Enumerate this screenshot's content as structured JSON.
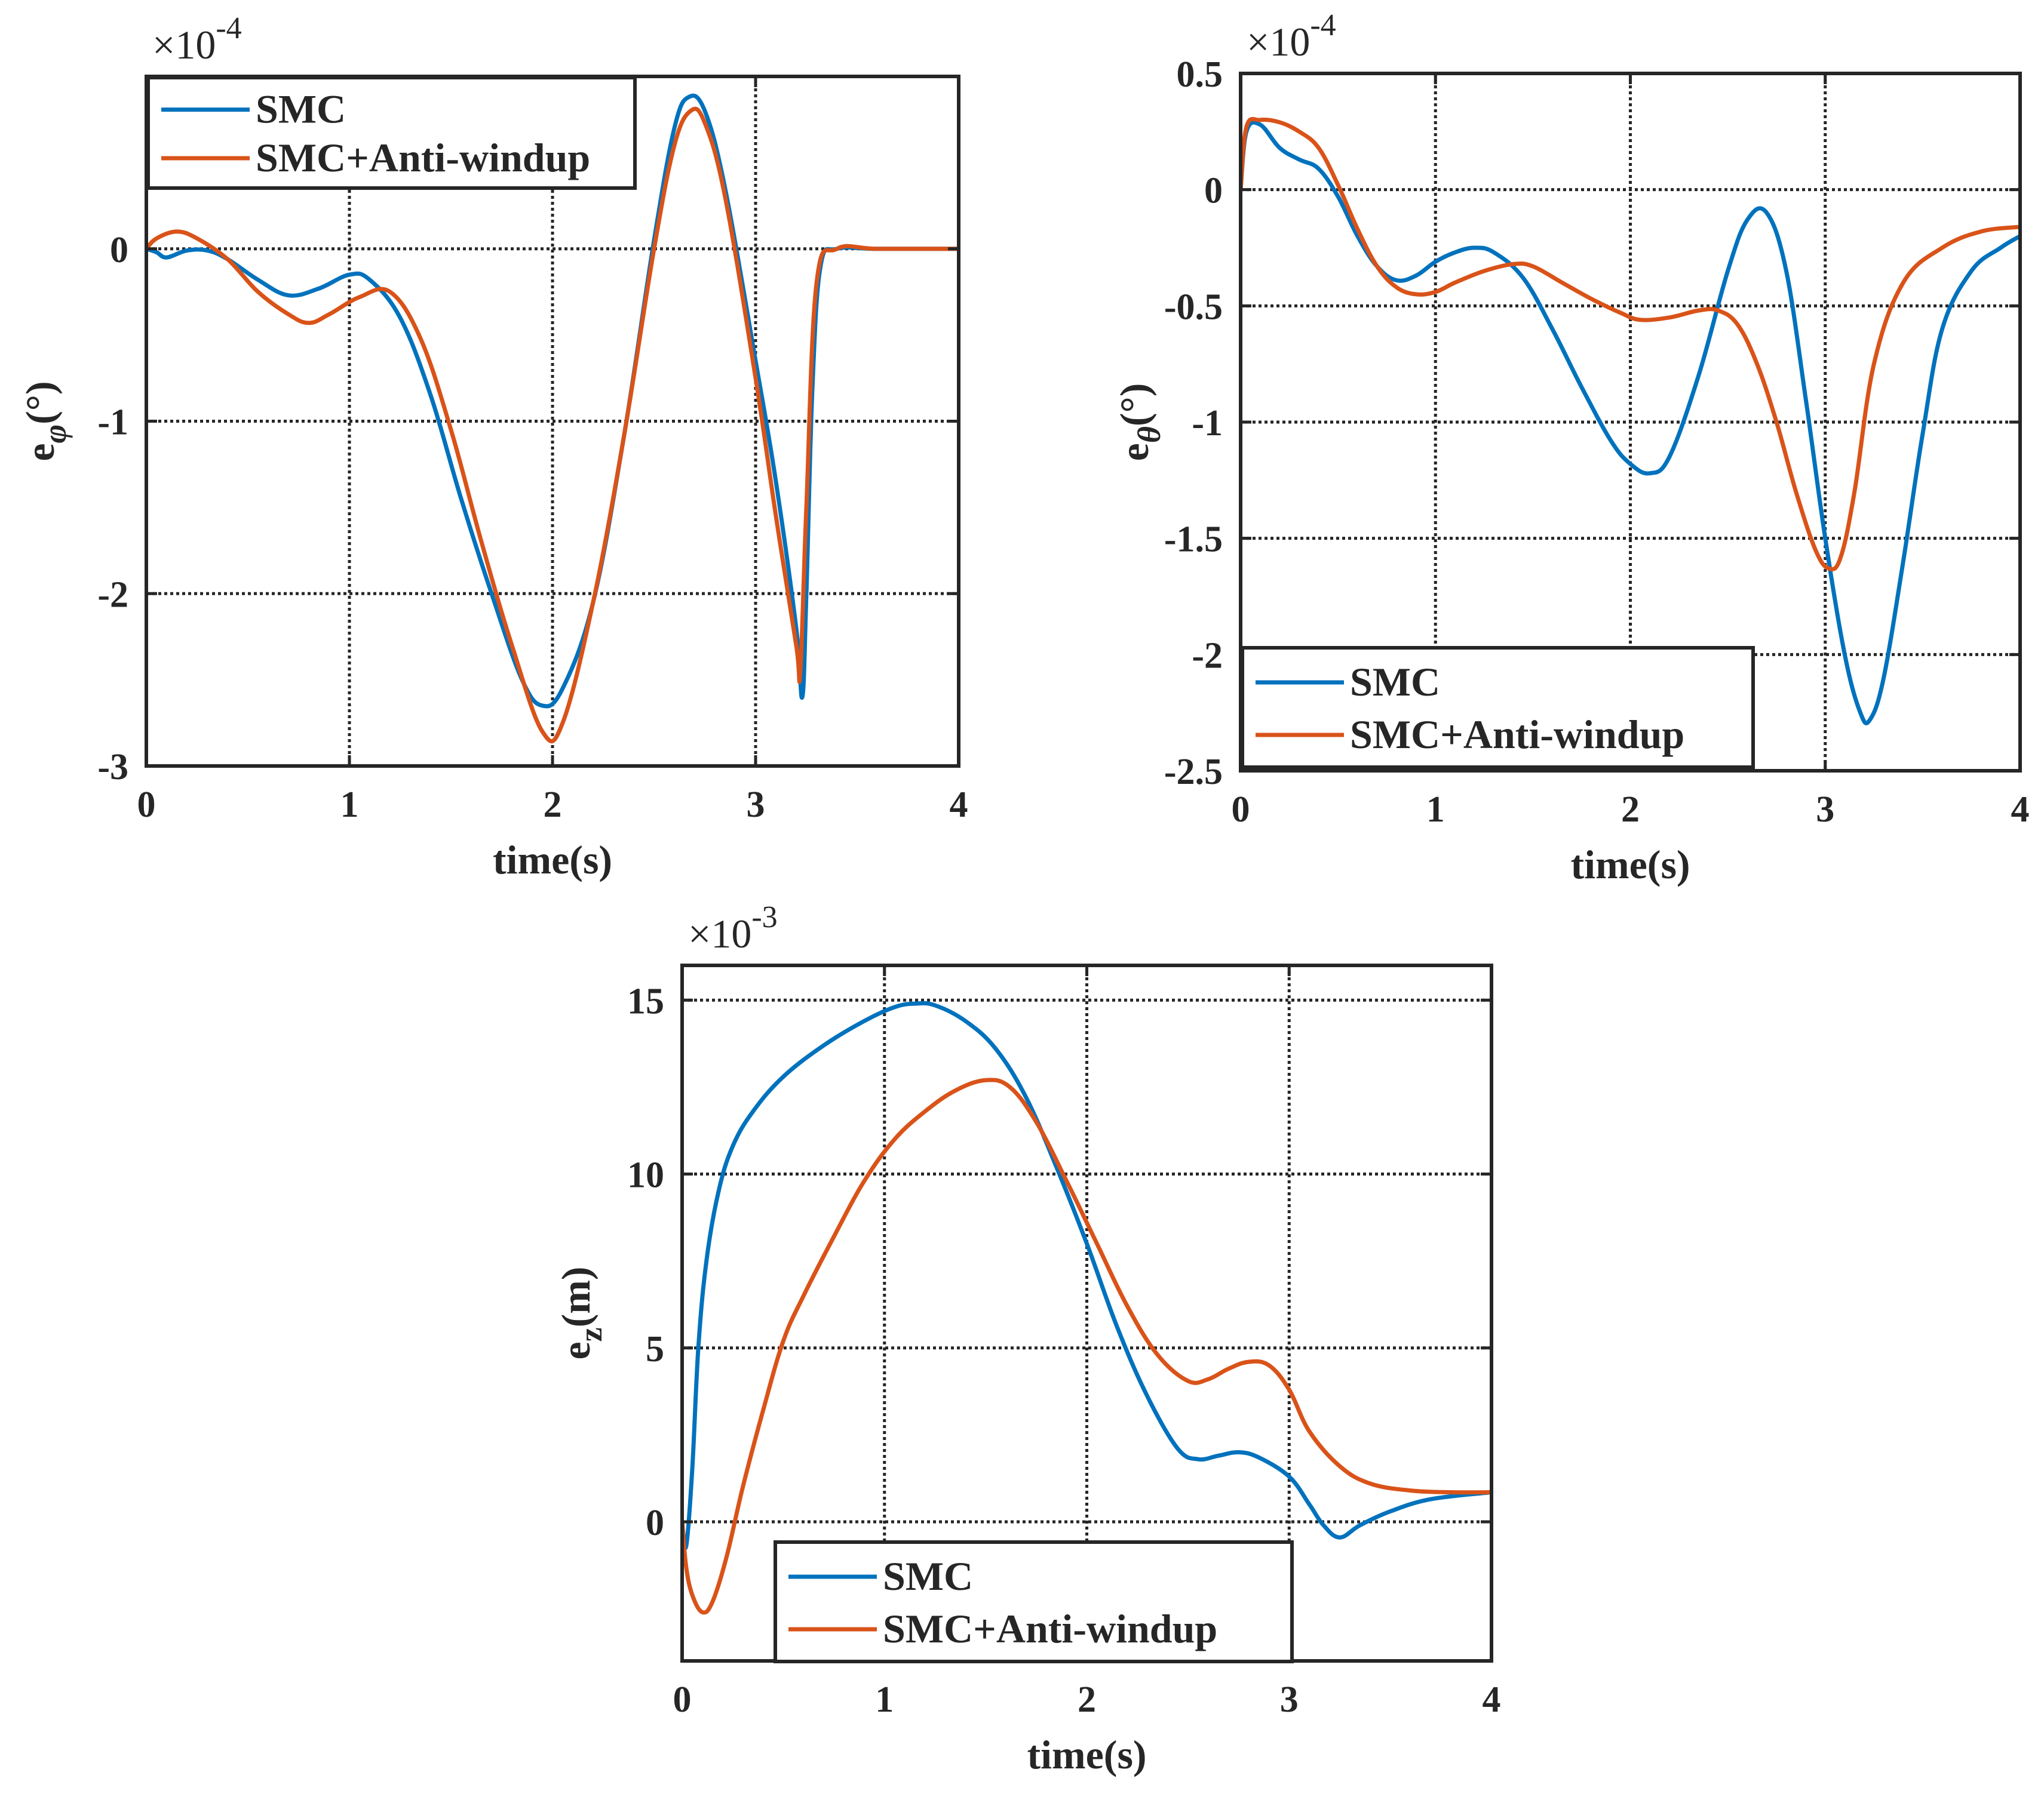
{
  "colors": {
    "SMC": "#0072bd",
    "SMC+Anti-windup": "#d95319",
    "axes": "#262626",
    "grid": "#262626"
  },
  "chart_data": [
    {
      "id": "phi",
      "type": "line",
      "title": "",
      "xlabel": "time(s)",
      "ylabel": {
        "base": "e",
        "sub": "φ",
        "unit": "(°)"
      },
      "exponent_label": "×10",
      "exponent_power": "-4",
      "xlim": [
        0,
        4
      ],
      "ylim": [
        -3,
        1
      ],
      "xticks": [
        0,
        1,
        2,
        3,
        4
      ],
      "xtick_labels": [
        "0",
        "1",
        "2",
        "3",
        "4"
      ],
      "yticks": [
        -3,
        -2,
        -1,
        0
      ],
      "ytick_labels": [
        "-3",
        "-2",
        "-1",
        "0"
      ],
      "grid": true,
      "legend_position": "top-left",
      "series": [
        {
          "name": "SMC",
          "color": "#0072bd",
          "x": [
            0,
            0.05,
            0.1,
            0.2,
            0.3,
            0.4,
            0.55,
            0.7,
            0.85,
            1.0,
            1.1,
            1.25,
            1.4,
            1.55,
            1.7,
            1.85,
            1.95,
            2.05,
            2.2,
            2.35,
            2.5,
            2.6,
            2.67,
            2.75,
            2.85,
            3.0,
            3.1,
            3.2,
            3.23,
            3.25,
            3.28,
            3.32,
            3.4,
            3.6,
            4.0
          ],
          "y": [
            0,
            -0.02,
            -0.05,
            -0.01,
            -0.01,
            -0.06,
            -0.18,
            -0.27,
            -0.23,
            -0.15,
            -0.18,
            -0.4,
            -0.85,
            -1.45,
            -2.0,
            -2.5,
            -2.65,
            -2.55,
            -2.05,
            -1.1,
            0.05,
            0.7,
            0.88,
            0.8,
            0.35,
            -0.65,
            -1.35,
            -2.2,
            -2.6,
            -2.0,
            -0.8,
            -0.1,
            0,
            0,
            0
          ]
        },
        {
          "name": "SMC+Anti-windup",
          "color": "#d95319",
          "x": [
            0,
            0.05,
            0.15,
            0.25,
            0.4,
            0.55,
            0.7,
            0.8,
            0.9,
            1.05,
            1.2,
            1.35,
            1.5,
            1.65,
            1.8,
            1.95,
            2.05,
            2.2,
            2.35,
            2.5,
            2.6,
            2.68,
            2.75,
            2.85,
            3.0,
            3.1,
            3.2,
            3.22,
            3.25,
            3.3,
            3.4,
            3.6,
            4.0
          ],
          "y": [
            0,
            0.06,
            0.1,
            0.06,
            -0.06,
            -0.25,
            -0.38,
            -0.43,
            -0.38,
            -0.28,
            -0.25,
            -0.52,
            -1.05,
            -1.7,
            -2.3,
            -2.8,
            -2.75,
            -2.05,
            -1.1,
            0.0,
            0.6,
            0.8,
            0.73,
            0.3,
            -0.75,
            -1.55,
            -2.3,
            -2.45,
            -1.5,
            -0.2,
            0,
            0,
            0
          ]
        }
      ]
    },
    {
      "id": "theta",
      "type": "line",
      "title": "",
      "xlabel": "time(s)",
      "ylabel": {
        "base": "e",
        "sub": "θ",
        "unit": "(°)"
      },
      "exponent_label": "×10",
      "exponent_power": "-4",
      "xlim": [
        0,
        4
      ],
      "ylim": [
        -2.5,
        0.5
      ],
      "xticks": [
        0,
        1,
        2,
        3,
        4
      ],
      "xtick_labels": [
        "0",
        "1",
        "2",
        "3",
        "4"
      ],
      "yticks": [
        -2.5,
        -2,
        -1.5,
        -1,
        -0.5,
        0,
        0.5
      ],
      "ytick_labels": [
        "-2.5",
        "-2",
        "-1.5",
        "-1",
        "-0.5",
        "0",
        "0.5"
      ],
      "grid": true,
      "legend_position": "bottom-left",
      "series": [
        {
          "name": "SMC",
          "color": "#0072bd",
          "x": [
            0,
            0.03,
            0.1,
            0.2,
            0.3,
            0.4,
            0.5,
            0.6,
            0.7,
            0.8,
            0.9,
            1.0,
            1.1,
            1.2,
            1.3,
            1.45,
            1.6,
            1.75,
            1.9,
            2.0,
            2.1,
            2.2,
            2.35,
            2.5,
            2.6,
            2.7,
            2.8,
            2.9,
            3.0,
            3.1,
            3.18,
            3.23,
            3.3,
            3.4,
            3.5,
            3.6,
            3.75,
            3.9,
            4.0
          ],
          "y": [
            0,
            0.25,
            0.28,
            0.18,
            0.13,
            0.09,
            -0.03,
            -0.2,
            -0.33,
            -0.39,
            -0.37,
            -0.31,
            -0.27,
            -0.25,
            -0.27,
            -0.38,
            -0.6,
            -0.85,
            -1.08,
            -1.18,
            -1.22,
            -1.15,
            -0.8,
            -0.35,
            -0.13,
            -0.1,
            -0.35,
            -0.9,
            -1.5,
            -2.0,
            -2.25,
            -2.28,
            -2.1,
            -1.6,
            -1.05,
            -0.6,
            -0.35,
            -0.25,
            -0.2
          ]
        },
        {
          "name": "SMC+Anti-windup",
          "color": "#d95319",
          "x": [
            0,
            0.03,
            0.1,
            0.2,
            0.3,
            0.4,
            0.5,
            0.6,
            0.7,
            0.8,
            0.9,
            1.0,
            1.1,
            1.25,
            1.4,
            1.5,
            1.65,
            1.8,
            1.95,
            2.05,
            2.2,
            2.35,
            2.45,
            2.55,
            2.65,
            2.75,
            2.85,
            2.95,
            3.02,
            3.08,
            3.15,
            3.25,
            3.4,
            3.6,
            3.8,
            4.0
          ],
          "y": [
            0,
            0.27,
            0.3,
            0.29,
            0.25,
            0.18,
            0.02,
            -0.17,
            -0.33,
            -0.42,
            -0.45,
            -0.44,
            -0.4,
            -0.35,
            -0.32,
            -0.33,
            -0.4,
            -0.47,
            -0.53,
            -0.56,
            -0.55,
            -0.52,
            -0.52,
            -0.58,
            -0.75,
            -1.0,
            -1.3,
            -1.55,
            -1.63,
            -1.58,
            -1.3,
            -0.75,
            -0.4,
            -0.25,
            -0.18,
            -0.16
          ]
        }
      ]
    },
    {
      "id": "z",
      "type": "line",
      "title": "",
      "xlabel": "time(s)",
      "ylabel": {
        "base": "e",
        "sub": "z",
        "unit": "(m)"
      },
      "exponent_label": "×10",
      "exponent_power": "-3",
      "xlim": [
        0,
        4
      ],
      "ylim": [
        -4,
        16
      ],
      "xticks": [
        0,
        1,
        2,
        3,
        4
      ],
      "xtick_labels": [
        "0",
        "1",
        "2",
        "3",
        "4"
      ],
      "yticks": [
        0,
        5,
        10,
        15
      ],
      "ytick_labels": [
        "0",
        "5",
        "10",
        "15"
      ],
      "grid": true,
      "legend_position": "bottom-center",
      "series": [
        {
          "name": "SMC",
          "color": "#0072bd",
          "x": [
            0,
            0.02,
            0.05,
            0.08,
            0.12,
            0.18,
            0.25,
            0.35,
            0.5,
            0.7,
            0.9,
            1.05,
            1.15,
            1.25,
            1.4,
            1.55,
            1.7,
            1.85,
            2.0,
            2.15,
            2.3,
            2.45,
            2.55,
            2.65,
            2.75,
            2.85,
            3.0,
            3.1,
            3.17,
            3.25,
            3.35,
            3.5,
            3.7,
            4.0
          ],
          "y": [
            0,
            -0.7,
            1.5,
            5.0,
            7.5,
            9.5,
            10.8,
            11.8,
            12.8,
            13.7,
            14.4,
            14.8,
            14.9,
            14.85,
            14.4,
            13.6,
            12.2,
            10.2,
            8.0,
            5.6,
            3.6,
            2.1,
            1.8,
            1.9,
            2.0,
            1.85,
            1.3,
            0.5,
            -0.1,
            -0.45,
            -0.1,
            0.3,
            0.65,
            0.85
          ]
        },
        {
          "name": "SMC+Anti-windup",
          "color": "#d95319",
          "x": [
            0,
            0.02,
            0.05,
            0.1,
            0.15,
            0.22,
            0.3,
            0.4,
            0.5,
            0.6,
            0.75,
            0.9,
            1.05,
            1.2,
            1.35,
            1.5,
            1.62,
            1.75,
            1.9,
            2.05,
            2.2,
            2.35,
            2.5,
            2.6,
            2.7,
            2.8,
            2.9,
            3.0,
            3.1,
            3.25,
            3.4,
            3.6,
            3.8,
            4.0
          ],
          "y": [
            0,
            -1.3,
            -2.1,
            -2.6,
            -2.3,
            -1.0,
            1.0,
            3.2,
            5.2,
            6.5,
            8.2,
            9.8,
            11.0,
            11.8,
            12.4,
            12.7,
            12.5,
            11.5,
            9.8,
            8.0,
            6.2,
            4.8,
            4.05,
            4.1,
            4.4,
            4.6,
            4.5,
            3.8,
            2.6,
            1.6,
            1.1,
            0.9,
            0.85,
            0.85
          ]
        }
      ]
    }
  ]
}
